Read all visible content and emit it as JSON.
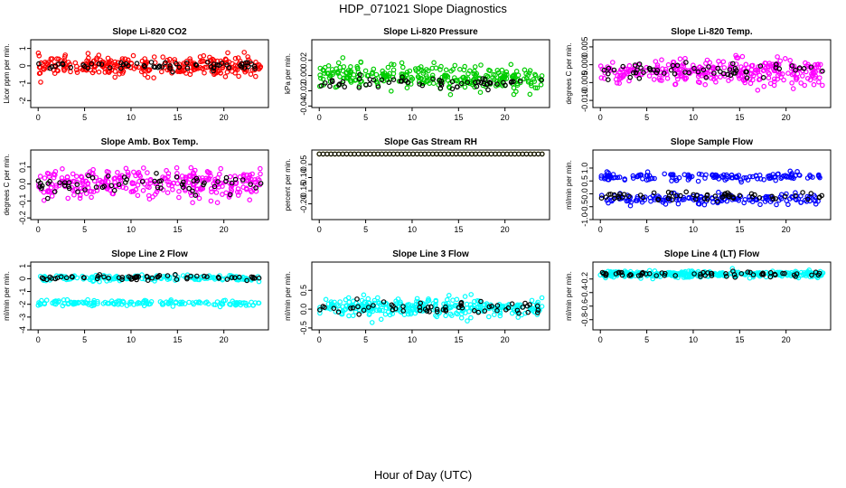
{
  "title": "HDP_071021  Slope Diagnostics",
  "xlabel": "Hour of Day (UTC)",
  "chart_data": [
    {
      "type": "scatter",
      "title": "Slope Li-820 CO2",
      "ylabel": "Licor ppm per min.",
      "xlim": [
        -0.8,
        24.8
      ],
      "ylim": [
        -2.4,
        1.5
      ],
      "xticks": [
        0,
        5,
        10,
        15,
        20
      ],
      "yticks": [
        -2,
        -1,
        0,
        1
      ],
      "ytick_labels": [
        "-2",
        "-1",
        "0",
        "1"
      ],
      "series": [
        {
          "name": "red",
          "color": "#ff0000",
          "mean": 0.0,
          "spread": 0.45
        },
        {
          "name": "black",
          "color": "#000000",
          "mean": 0.0,
          "spread": 0.2
        }
      ]
    },
    {
      "type": "scatter",
      "title": "Slope Li-820 Pressure",
      "ylabel": "kPa per min.",
      "xlim": [
        -0.8,
        24.8
      ],
      "ylim": [
        -0.042,
        0.047
      ],
      "xticks": [
        0,
        5,
        10,
        15,
        20
      ],
      "yticks": [
        -0.04,
        -0.02,
        0.0,
        0.02
      ],
      "ytick_labels": [
        "-0.04",
        "-0.02",
        "0.00",
        "0.02"
      ],
      "series": [
        {
          "name": "green",
          "color": "#00cc00",
          "mean": 0.0,
          "spread": 0.013
        },
        {
          "name": "black",
          "color": "#000000",
          "mean": -0.01,
          "spread": 0.006
        }
      ]
    },
    {
      "type": "scatter",
      "title": "Slope Li-820 Temp.",
      "ylabel": "degrees C per min.",
      "xlim": [
        -0.8,
        24.8
      ],
      "ylim": [
        -0.012,
        0.007
      ],
      "xticks": [
        0,
        5,
        10,
        15,
        20
      ],
      "yticks": [
        -0.01,
        -0.005,
        0.0,
        0.005
      ],
      "ytick_labels": [
        "-0.010",
        "-0.005",
        "0.000",
        "0.005"
      ],
      "series": [
        {
          "name": "magenta",
          "color": "#ff00ff",
          "mean": -0.002,
          "spread": 0.003
        },
        {
          "name": "black",
          "color": "#000000",
          "mean": -0.002,
          "spread": 0.002
        }
      ]
    },
    {
      "type": "scatter",
      "title": "Slope Amb. Box Temp.",
      "ylabel": "degrees C per min.",
      "xlim": [
        -0.8,
        24.8
      ],
      "ylim": [
        -0.21,
        0.2
      ],
      "xticks": [
        0,
        5,
        10,
        15,
        20
      ],
      "yticks": [
        -0.2,
        -0.1,
        0.0,
        0.1
      ],
      "ytick_labels": [
        "-0.2",
        "-0.1",
        "0.0",
        "0.1"
      ],
      "series": [
        {
          "name": "magenta",
          "color": "#ff00ff",
          "mean": 0.0,
          "spread": 0.07
        },
        {
          "name": "black",
          "color": "#000000",
          "mean": 0.0,
          "spread": 0.05
        }
      ]
    },
    {
      "type": "scatter",
      "title": "Slope Gas Stream RH",
      "ylabel": "percent per min.",
      "xlim": [
        -0.8,
        24.8
      ],
      "ylim": [
        -0.26,
        0.005
      ],
      "xticks": [
        0,
        5,
        10,
        15,
        20
      ],
      "yticks": [
        -0.05,
        -0.1,
        -0.15,
        -0.2
      ],
      "ytick_labels": [
        "-0.05",
        "-0.10",
        "-0.15",
        "-0.20"
      ],
      "series": [
        {
          "name": "yellow",
          "color": "#ffff00",
          "mean": -0.01,
          "spread": 0.0
        },
        {
          "name": "black",
          "color": "#000000",
          "mean": -0.01,
          "spread": 0.0
        }
      ]
    },
    {
      "type": "scatter",
      "title": "Slope Sample Flow",
      "ylabel": "ml/min per min.",
      "xlim": [
        -0.8,
        24.8
      ],
      "ylim": [
        -1.0,
        1.7
      ],
      "xticks": [
        0,
        5,
        10,
        15,
        20
      ],
      "yticks": [
        -1,
        -0.5,
        0,
        0.5,
        1
      ],
      "ytick_labels": [
        "-1.0",
        "-0.5",
        "0.0",
        "0.5",
        "1.0"
      ],
      "series": [
        {
          "name": "blue",
          "color": "#0000ff",
          "mean": 0.2,
          "spread": 0.45
        },
        {
          "name": "black",
          "color": "#000000",
          "mean": -0.1,
          "spread": 0.15
        }
      ]
    },
    {
      "type": "scatter",
      "title": "Slope Line 2 Flow",
      "ylabel": "ml/min per min.",
      "xlim": [
        -0.8,
        24.8
      ],
      "ylim": [
        -4.0,
        1.3
      ],
      "xticks": [
        0,
        5,
        10,
        15,
        20
      ],
      "yticks": [
        -4,
        -3,
        -2,
        -1,
        0,
        1
      ],
      "ytick_labels": [
        "-4",
        "-3",
        "-2",
        "-1",
        "0",
        "1"
      ],
      "series": [
        {
          "name": "cyan",
          "color": "#00ffff",
          "mean": -1.0,
          "spread": 1.1
        },
        {
          "name": "black",
          "color": "#000000",
          "mean": 0.1,
          "spread": 0.15
        }
      ]
    },
    {
      "type": "scatter",
      "title": "Slope Line 3 Flow",
      "ylabel": "ml/min per min.",
      "xlim": [
        -0.8,
        24.8
      ],
      "ylim": [
        -0.55,
        1.25
      ],
      "xticks": [
        0,
        5,
        10,
        15,
        20
      ],
      "yticks": [
        -0.5,
        0.0,
        0.5
      ],
      "ytick_labels": [
        "-0.5",
        "0.0",
        "0.5"
      ],
      "series": [
        {
          "name": "cyan",
          "color": "#00ffff",
          "mean": 0.05,
          "spread": 0.2
        },
        {
          "name": "black",
          "color": "#000000",
          "mean": 0.05,
          "spread": 0.15
        }
      ]
    },
    {
      "type": "scatter",
      "title": "Slope Line 4 (LT) Flow",
      "ylabel": "ml/min per min.",
      "xlim": [
        -0.8,
        24.8
      ],
      "ylim": [
        -0.95,
        0.05
      ],
      "xticks": [
        0,
        5,
        10,
        15,
        20
      ],
      "yticks": [
        -0.8,
        -0.6,
        -0.4,
        -0.2
      ],
      "ytick_labels": [
        "-0.8",
        "-0.6",
        "-0.4",
        "-0.2"
      ],
      "series": [
        {
          "name": "cyan",
          "color": "#00ffff",
          "mean": -0.13,
          "spread": 0.04
        },
        {
          "name": "black",
          "color": "#000000",
          "mean": -0.13,
          "spread": 0.03
        }
      ]
    }
  ]
}
